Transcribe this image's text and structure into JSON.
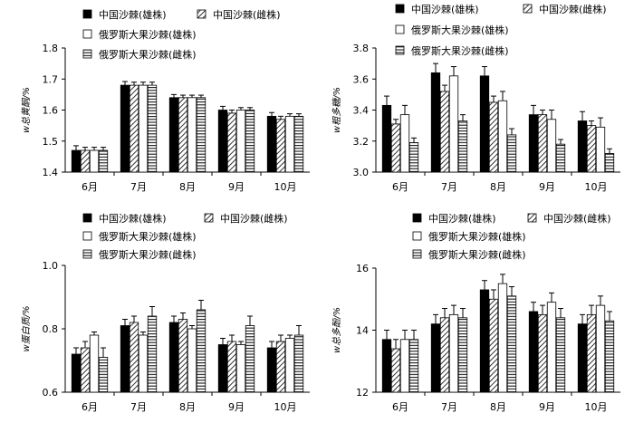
{
  "legend_labels": [
    "中国沙棘(雄株)",
    "中国沙棘(雌株)",
    "俄罗斯大果沙棘(雄株)",
    "俄罗斯大果沙棘(雌株)"
  ],
  "chart_data": [
    {
      "type": "bar",
      "ylabel": "w总黄酮/%",
      "categories": [
        "6月",
        "7月",
        "8月",
        "9月",
        "10月"
      ],
      "ylim": [
        1.4,
        1.8
      ],
      "yticks": [
        "1.4",
        "1.5",
        "1.6",
        "1.7",
        "1.8"
      ],
      "series": [
        {
          "name": "中国沙棘(雄株)",
          "values": [
            1.47,
            1.68,
            1.64,
            1.6,
            1.58
          ],
          "errors": [
            0.015,
            0.012,
            0.01,
            0.012,
            0.012
          ]
        },
        {
          "name": "中国沙棘(雌株)",
          "values": [
            1.47,
            1.68,
            1.64,
            1.59,
            1.57
          ],
          "errors": [
            0.01,
            0.01,
            0.008,
            0.01,
            0.01
          ]
        },
        {
          "name": "俄罗斯大果沙棘(雄株)",
          "values": [
            1.47,
            1.68,
            1.64,
            1.6,
            1.58
          ],
          "errors": [
            0.01,
            0.01,
            0.008,
            0.008,
            0.008
          ]
        },
        {
          "name": "俄罗斯大果沙棘(雌株)",
          "values": [
            1.47,
            1.68,
            1.64,
            1.6,
            1.58
          ],
          "errors": [
            0.01,
            0.01,
            0.008,
            0.008,
            0.008
          ]
        }
      ]
    },
    {
      "type": "bar",
      "ylabel": "w粗多糖/%",
      "categories": [
        "6月",
        "7月",
        "8月",
        "9月",
        "10月"
      ],
      "ylim": [
        3.0,
        3.8
      ],
      "yticks": [
        "3.0",
        "3.2",
        "3.4",
        "3.6",
        "3.8"
      ],
      "series": [
        {
          "name": "中国沙棘(雄株)",
          "values": [
            3.43,
            3.64,
            3.62,
            3.37,
            3.33
          ],
          "errors": [
            0.06,
            0.06,
            0.06,
            0.06,
            0.06
          ]
        },
        {
          "name": "中国沙棘(雌株)",
          "values": [
            3.31,
            3.52,
            3.45,
            3.37,
            3.3
          ],
          "errors": [
            0.03,
            0.04,
            0.04,
            0.03,
            0.03
          ]
        },
        {
          "name": "俄罗斯大果沙棘(雄株)",
          "values": [
            3.37,
            3.62,
            3.46,
            3.34,
            3.29
          ],
          "errors": [
            0.06,
            0.06,
            0.06,
            0.06,
            0.06
          ]
        },
        {
          "name": "俄罗斯大果沙棘(雌株)",
          "values": [
            3.19,
            3.33,
            3.24,
            3.18,
            3.12
          ],
          "errors": [
            0.03,
            0.04,
            0.04,
            0.03,
            0.03
          ]
        }
      ]
    },
    {
      "type": "bar",
      "ylabel": "w蛋白质/%",
      "categories": [
        "6月",
        "7月",
        "8月",
        "9月",
        "10月"
      ],
      "ylim": [
        0.6,
        1.0
      ],
      "yticks": [
        "0.6",
        "0.8",
        "1.0"
      ],
      "series": [
        {
          "name": "中国沙棘(雄株)",
          "values": [
            0.72,
            0.81,
            0.82,
            0.75,
            0.74
          ],
          "errors": [
            0.02,
            0.02,
            0.02,
            0.02,
            0.02
          ]
        },
        {
          "name": "中国沙棘(雌株)",
          "values": [
            0.74,
            0.82,
            0.83,
            0.76,
            0.76
          ],
          "errors": [
            0.02,
            0.02,
            0.02,
            0.02,
            0.02
          ]
        },
        {
          "name": "俄罗斯大果沙棘(雄株)",
          "values": [
            0.78,
            0.78,
            0.8,
            0.75,
            0.77
          ],
          "errors": [
            0.01,
            0.01,
            0.01,
            0.01,
            0.01
          ]
        },
        {
          "name": "俄罗斯大果沙棘(雌株)",
          "values": [
            0.71,
            0.84,
            0.86,
            0.81,
            0.78
          ],
          "errors": [
            0.03,
            0.03,
            0.03,
            0.03,
            0.03
          ]
        }
      ]
    },
    {
      "type": "bar",
      "ylabel": "w总多酚/%",
      "categories": [
        "6月",
        "7月",
        "8月",
        "9月",
        "10月"
      ],
      "ylim": [
        12,
        16
      ],
      "yticks": [
        "12",
        "14",
        "16"
      ],
      "series": [
        {
          "name": "中国沙棘(雄株)",
          "values": [
            13.7,
            14.2,
            15.3,
            14.6,
            14.2
          ],
          "errors": [
            0.3,
            0.3,
            0.3,
            0.3,
            0.3
          ]
        },
        {
          "name": "中国沙棘(雌株)",
          "values": [
            13.4,
            14.4,
            15.0,
            14.5,
            14.5
          ],
          "errors": [
            0.3,
            0.3,
            0.3,
            0.3,
            0.3
          ]
        },
        {
          "name": "俄罗斯大果沙棘(雄株)",
          "values": [
            13.7,
            14.5,
            15.5,
            14.9,
            14.8
          ],
          "errors": [
            0.3,
            0.3,
            0.3,
            0.3,
            0.3
          ]
        },
        {
          "name": "俄罗斯大果沙棘(雌株)",
          "values": [
            13.7,
            14.4,
            15.1,
            14.4,
            14.3
          ],
          "errors": [
            0.3,
            0.3,
            0.3,
            0.3,
            0.3
          ]
        }
      ]
    }
  ]
}
